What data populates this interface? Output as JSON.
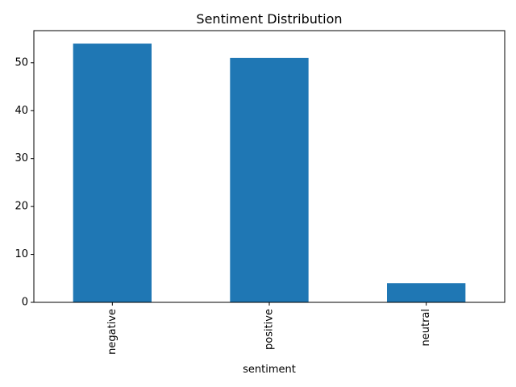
{
  "chart_data": {
    "type": "bar",
    "title": "Sentiment Distribution",
    "xlabel": "sentiment",
    "ylabel": "",
    "categories": [
      "negative",
      "positive",
      "neutral"
    ],
    "values": [
      54,
      51,
      4
    ],
    "ylim": [
      0,
      56.7
    ],
    "yticks": [
      0,
      10,
      20,
      30,
      40,
      50
    ],
    "grid": false,
    "legend": "none",
    "x_tick_rotation": "vertical",
    "bar_color": "#1f77b4"
  }
}
